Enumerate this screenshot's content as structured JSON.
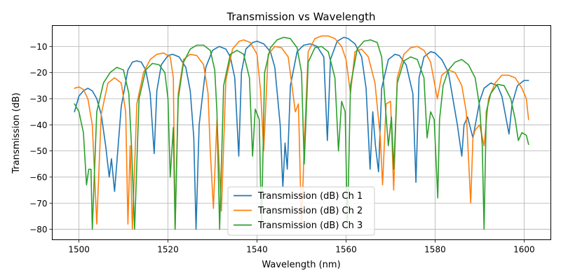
{
  "chart_data": {
    "type": "line",
    "title": "Transmission vs Wavelength",
    "xlabel": "Wavelength (nm)",
    "ylabel": "Transmission (dB)",
    "xlim": [
      1494,
      1606
    ],
    "ylim": [
      -84,
      -2
    ],
    "xticks": [
      1500,
      1520,
      1540,
      1560,
      1580,
      1600
    ],
    "yticks": [
      -80,
      -70,
      -60,
      -50,
      -40,
      -30,
      -20,
      -10
    ],
    "xtick_labels": [
      "1500",
      "1520",
      "1540",
      "1560",
      "1580",
      "1600"
    ],
    "ytick_labels": [
      "−80",
      "−70",
      "−60",
      "−50",
      "−40",
      "−30",
      "−20",
      "−10"
    ],
    "grid": true,
    "legend_position": "lower center",
    "series": [
      {
        "name": "Transmission (dB) Ch 1",
        "color": "#1f77b4",
        "x": [
          1499,
          1500,
          1501,
          1502,
          1503,
          1504,
          1505,
          1506,
          1506.8,
          1507.3,
          1508,
          1509.5,
          1511,
          1512,
          1513,
          1514,
          1515,
          1516,
          1516.9,
          1517.5,
          1518.5,
          1520,
          1521,
          1522.5,
          1524,
          1525,
          1525.8,
          1526.3,
          1527,
          1528.5,
          1530,
          1531.5,
          1533,
          1534,
          1535,
          1535.9,
          1536.5,
          1537.5,
          1539,
          1540,
          1541.5,
          1543,
          1544,
          1545.2,
          1545.8,
          1546.3,
          1546.8,
          1547.5,
          1549,
          1550.5,
          1552,
          1553.5,
          1555,
          1555.8,
          1556.5,
          1558,
          1559.5,
          1560.5,
          1562,
          1563.5,
          1564.5,
          1565.4,
          1566,
          1566.6,
          1567.3,
          1568,
          1569.5,
          1571,
          1572,
          1573.5,
          1575,
          1575.7,
          1576.4,
          1577.5,
          1579,
          1580,
          1581.5,
          1583,
          1584,
          1585,
          1586,
          1586.5,
          1587.3,
          1588.5,
          1590,
          1591,
          1592.5,
          1594,
          1595,
          1596,
          1596.6,
          1597.3,
          1598.5,
          1600,
          1601
        ],
        "y": [
          -35,
          -29,
          -27,
          -26,
          -27,
          -30,
          -36,
          -48,
          -60,
          -53,
          -65.5,
          -33,
          -19,
          -16,
          -15.5,
          -16,
          -19,
          -28,
          -51,
          -27,
          -17,
          -13.5,
          -13,
          -14,
          -18,
          -27,
          -45,
          -80,
          -40,
          -18,
          -11.5,
          -10,
          -11,
          -14,
          -22,
          -52,
          -20,
          -11,
          -8.5,
          -8,
          -9,
          -12,
          -18,
          -40,
          -64,
          -47,
          -57,
          -25,
          -12,
          -9.5,
          -9,
          -10,
          -14,
          -46,
          -15,
          -8,
          -6.5,
          -7,
          -9,
          -14,
          -26,
          -57,
          -35,
          -48,
          -58,
          -26,
          -15,
          -13,
          -13.5,
          -17,
          -28,
          -62,
          -22,
          -14,
          -12,
          -12.5,
          -15,
          -20,
          -30,
          -40,
          -52,
          -40,
          -37,
          -45,
          -31,
          -26,
          -24,
          -25,
          -29,
          -38,
          -43.5,
          -32,
          -25,
          -23,
          -23
        ]
      },
      {
        "name": "Transmission (dB) Ch 2",
        "color": "#ff7f0e",
        "x": [
          1499,
          1500,
          1501,
          1502,
          1503,
          1504,
          1505,
          1506.5,
          1508,
          1509.5,
          1510.5,
          1511,
          1511.5,
          1512,
          1513,
          1514.5,
          1516,
          1517.5,
          1519,
          1520.5,
          1521.2,
          1521.6,
          1522.3,
          1523.5,
          1525,
          1526.5,
          1528,
          1529,
          1529.5,
          1530.2,
          1531,
          1532,
          1533,
          1534.5,
          1536,
          1537,
          1538.5,
          1540,
          1540.8,
          1541.5,
          1542.5,
          1544,
          1545.5,
          1547,
          1548,
          1548.6,
          1549.3,
          1550,
          1550.6,
          1551.5,
          1553,
          1554.5,
          1556,
          1557.5,
          1559,
          1560,
          1561,
          1562,
          1563.5,
          1565,
          1566.5,
          1567.7,
          1568.2,
          1569,
          1570,
          1570.7,
          1571.5,
          1573,
          1574.5,
          1576,
          1577.5,
          1579,
          1580.5,
          1581.5,
          1583,
          1584.5,
          1586,
          1587,
          1588,
          1588.5,
          1589,
          1590,
          1591,
          1592,
          1593.5,
          1595,
          1596.5,
          1598,
          1599.5,
          1600.5,
          1601
        ],
        "y": [
          -26,
          -25.5,
          -26.5,
          -30,
          -40,
          -78,
          -36,
          -24,
          -22,
          -24,
          -35,
          -78,
          -48,
          -80,
          -32,
          -20,
          -15,
          -13,
          -12.5,
          -14,
          -22,
          -80,
          -28,
          -15,
          -13,
          -13.5,
          -17,
          -28,
          -50,
          -72,
          -38,
          -73,
          -23,
          -11,
          -8,
          -7.5,
          -8.5,
          -13,
          -27,
          -50,
          -13,
          -10,
          -10.5,
          -14,
          -27,
          -35,
          -32,
          -80,
          -48,
          -12,
          -7,
          -6,
          -6,
          -7,
          -10,
          -15,
          -28,
          -12,
          -11,
          -14,
          -24,
          -45,
          -63,
          -32,
          -31,
          -65,
          -22,
          -13,
          -10.5,
          -10,
          -11.5,
          -16,
          -30,
          -21,
          -19,
          -20,
          -25,
          -35,
          -70,
          -45,
          -42,
          -40,
          -48,
          -30,
          -24,
          -21,
          -21,
          -22,
          -26,
          -30,
          -38
        ]
      },
      {
        "name": "Transmission (dB) Ch 3",
        "color": "#2ca02c",
        "x": [
          1499,
          1500,
          1501,
          1501.7,
          1502.2,
          1502.7,
          1503,
          1504,
          1505.5,
          1507,
          1508.5,
          1510,
          1511.2,
          1511.8,
          1512.5,
          1513.5,
          1515,
          1516.5,
          1518,
          1519.3,
          1520,
          1520.5,
          1521.2,
          1521.6,
          1522.3,
          1523.5,
          1525,
          1526.5,
          1528,
          1529.5,
          1530.5,
          1531,
          1531.6,
          1532.5,
          1534,
          1535.5,
          1537,
          1538.3,
          1539,
          1539.6,
          1540.5,
          1541,
          1541.7,
          1543,
          1544.5,
          1546,
          1547.5,
          1549,
          1550,
          1550.6,
          1551.5,
          1553,
          1554.5,
          1556,
          1557.5,
          1558.3,
          1559,
          1559.8,
          1560.3,
          1561,
          1562.5,
          1564,
          1565.5,
          1567,
          1568,
          1568.7,
          1569.5,
          1570.2,
          1570.7,
          1571.5,
          1573,
          1574.5,
          1576,
          1577.5,
          1578.2,
          1579,
          1579.8,
          1580.6,
          1581,
          1581.8,
          1583,
          1584.5,
          1586,
          1587.5,
          1589,
          1590,
          1590.6,
          1591,
          1591.5,
          1592.5,
          1594,
          1595.5,
          1597,
          1598,
          1598.7,
          1599.5,
          1600.5,
          1601
        ],
        "y": [
          -32,
          -35,
          -43,
          -63,
          -57,
          -57,
          -80,
          -35,
          -24,
          -20,
          -18,
          -19,
          -28,
          -48,
          -80,
          -30,
          -19,
          -16.5,
          -17,
          -20,
          -30,
          -60,
          -41,
          -80,
          -30,
          -16,
          -11,
          -9.5,
          -9.5,
          -11.5,
          -19,
          -35,
          -80,
          -25,
          -13,
          -11.5,
          -13,
          -22,
          -52,
          -34,
          -38,
          -80,
          -20,
          -10.5,
          -7.5,
          -6.5,
          -7,
          -10.5,
          -20,
          -55,
          -16,
          -10.5,
          -10,
          -12,
          -22,
          -50,
          -31,
          -35,
          -80,
          -25,
          -11,
          -8,
          -7.5,
          -8.5,
          -14,
          -30,
          -48,
          -37,
          -57,
          -24,
          -15.5,
          -14,
          -15,
          -22,
          -45,
          -35,
          -38,
          -68,
          -38,
          -25,
          -19,
          -16,
          -15,
          -17,
          -22,
          -33,
          -48,
          -80,
          -35,
          -28,
          -24.5,
          -25,
          -30,
          -38,
          -46,
          -43,
          -44,
          -47.5
        ]
      }
    ]
  }
}
